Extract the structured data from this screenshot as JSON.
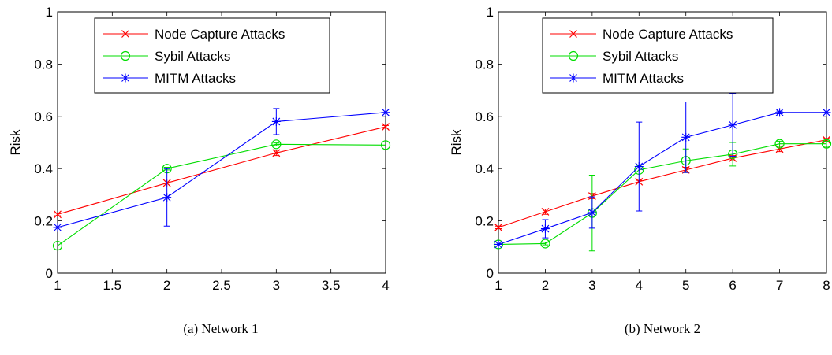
{
  "chart_data": [
    {
      "type": "line",
      "caption": "(a)  Network 1",
      "ylabel": "Risk",
      "xlim": [
        1,
        4
      ],
      "ylim": [
        0,
        1
      ],
      "xticks": [
        1,
        1.5,
        2,
        2.5,
        3,
        3.5,
        4
      ],
      "xtick_labels": [
        "1",
        "1.5",
        "2",
        "2.5",
        "3",
        "3.5",
        "4"
      ],
      "yticks": [
        0,
        0.2,
        0.4,
        0.6,
        0.8,
        1
      ],
      "ytick_labels": [
        "0",
        "0.2",
        "0.4",
        "0.6",
        "0.8",
        "1"
      ],
      "legend_position": "top-left",
      "series": [
        {
          "name": "Node Capture Attacks",
          "color": "#ff0000",
          "marker": "x",
          "x": [
            1,
            2,
            3,
            4
          ],
          "y": [
            0.225,
            0.345,
            0.46,
            0.56
          ],
          "err": [
            0.005,
            0.015,
            0.01,
            0.005
          ]
        },
        {
          "name": "Sybil Attacks",
          "color": "#00dd00",
          "marker": "o",
          "x": [
            1,
            2,
            3,
            4
          ],
          "y": [
            0.105,
            0.4,
            0.493,
            0.49
          ],
          "err": [
            0,
            0.005,
            0.005,
            0
          ]
        },
        {
          "name": "MITM Attacks",
          "color": "#0000ff",
          "marker": "*",
          "x": [
            1,
            2,
            3,
            4
          ],
          "y": [
            0.175,
            0.29,
            0.58,
            0.615
          ],
          "err": [
            0,
            0.11,
            0.05,
            0
          ]
        }
      ]
    },
    {
      "type": "line",
      "caption": "(b)  Network 2",
      "ylabel": "Risk",
      "xlim": [
        1,
        8
      ],
      "ylim": [
        0,
        1
      ],
      "xticks": [
        1,
        2,
        3,
        4,
        5,
        6,
        7,
        8
      ],
      "xtick_labels": [
        "1",
        "2",
        "3",
        "4",
        "5",
        "6",
        "7",
        "8"
      ],
      "yticks": [
        0,
        0.2,
        0.4,
        0.6,
        0.8,
        1
      ],
      "ytick_labels": [
        "0",
        "0.2",
        "0.4",
        "0.6",
        "0.8",
        "1"
      ],
      "legend_position": "top-left",
      "series": [
        {
          "name": "Node Capture Attacks",
          "color": "#ff0000",
          "marker": "x",
          "x": [
            1,
            2,
            3,
            4,
            5,
            6,
            7,
            8
          ],
          "y": [
            0.175,
            0.235,
            0.295,
            0.35,
            0.395,
            0.44,
            0.475,
            0.51
          ],
          "err": [
            0.005,
            0.01,
            0.01,
            0.005,
            0.01,
            0.01,
            0.01,
            0.005
          ]
        },
        {
          "name": "Sybil Attacks",
          "color": "#00dd00",
          "marker": "o",
          "x": [
            1,
            2,
            3,
            4,
            5,
            6,
            7,
            8
          ],
          "y": [
            0.11,
            0.113,
            0.23,
            0.395,
            0.43,
            0.455,
            0.495,
            0.495
          ],
          "err": [
            0,
            0.005,
            0.145,
            0,
            0.045,
            0.045,
            0.01,
            0.01
          ]
        },
        {
          "name": "MITM Attacks",
          "color": "#0000ff",
          "marker": "*",
          "x": [
            1,
            2,
            3,
            4,
            5,
            6,
            7,
            8
          ],
          "y": [
            0.11,
            0.17,
            0.232,
            0.408,
            0.52,
            0.567,
            0.615,
            0.615
          ],
          "err": [
            0,
            0.035,
            0.06,
            0.17,
            0.135,
            0.12,
            0.005,
            0
          ]
        }
      ]
    }
  ]
}
